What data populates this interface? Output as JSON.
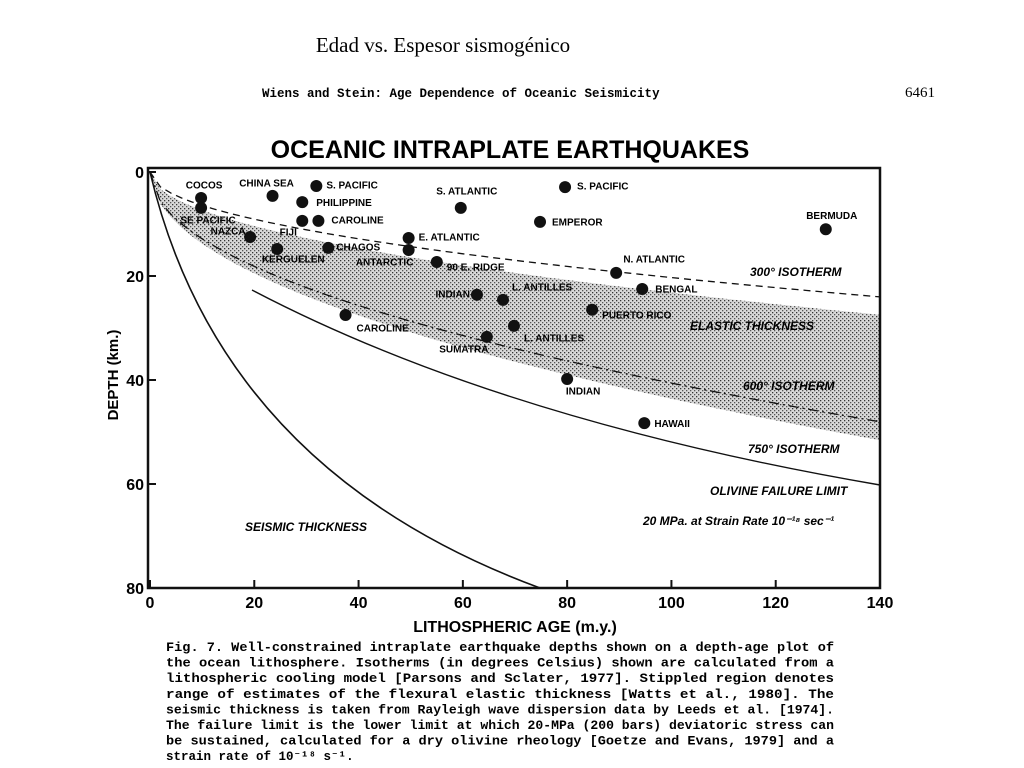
{
  "slide_title": "Edad vs. Espesor sismogénico",
  "header": "Wiens and Stein: Age Dependence of Oceanic Seismicity",
  "page_number": "6461",
  "chart_data": {
    "type": "scatter",
    "title": "OCEANIC INTRAPLATE EARTHQUAKES",
    "x_label": "LITHOSPHERIC AGE (m.y.)",
    "y_label": "DEPTH (km.)",
    "xlim": [
      0,
      140
    ],
    "ylim": [
      0,
      80
    ],
    "y_inverted": true,
    "xticks": [
      0,
      20,
      40,
      60,
      80,
      100,
      120,
      140
    ],
    "yticks": [
      0,
      20,
      40,
      60,
      80
    ],
    "color": "#111111",
    "x": [
      9.8,
      9.8,
      19.2,
      23.5,
      31.9,
      29.2,
      29.2,
      32.3,
      24.4,
      34.2,
      49.6,
      49.6,
      55,
      59.6,
      79.6,
      74.8,
      129.6,
      89.4,
      94.4,
      62.7,
      67.7,
      84.8,
      69.8,
      64.6,
      37.5,
      80,
      94.8
    ],
    "values": [
      5.0,
      6.9,
      12.5,
      4.6,
      2.7,
      5.8,
      9.4,
      9.4,
      14.8,
      14.6,
      12.7,
      15.0,
      17.3,
      6.9,
      2.9,
      9.6,
      11.0,
      19.4,
      22.5,
      23.6,
      24.6,
      26.5,
      29.6,
      31.7,
      27.5,
      39.8,
      48.3
    ],
    "point_labels": [
      "COCOS",
      "SE PACIFIC",
      "NAZCA",
      "CHINA SEA",
      "S. PACIFIC",
      "PHILIPPINE",
      "FIJI",
      "CAROLINE",
      "KERGUELEN",
      "CHAGOS",
      "E. ATLANTIC",
      "ANTARCTIC",
      "90 E. RIDGE",
      "S. ATLANTIC",
      "S. PACIFIC",
      "EMPEROR",
      "BERMUDA",
      "N. ATLANTIC",
      "BENGAL",
      "INDIAN",
      "L. ANTILLES",
      "PUERTO RICO",
      "L. ANTILLES",
      "SUMATRA",
      "CAROLINE",
      "INDIAN",
      "HAWAII"
    ],
    "annotations": [
      "300° ISOTHERM",
      "ELASTIC THICKNESS",
      "600° ISOTHERM",
      "750° ISOTHERM",
      "OLIVINE FAILURE LIMIT",
      "20 MPa. at Strain Rate 10⁻¹⁸ sec⁻¹",
      "SEISMIC THICKNESS"
    ]
  },
  "caption": [
    "Fig. 7.  Well-constrained intraplate earthquake depths shown on a depth-age plot of",
    "the ocean lithosphere.  Isotherms (in degrees Celsius) shown are calculated from a",
    "lithospheric cooling model [Parsons and Sclater, 1977].  Stippled region denotes",
    "range of estimates of the flexural elastic thickness [Watts et al., 1980].  The",
    "seismic thickness is taken from Rayleigh wave dispersion data by Leeds et al. [1974].",
    "The failure limit is the lower limit at which 20-MPa (200 bars) deviatoric stress can",
    "be sustained, calculated for a dry olivine rheology [Goetze and Evans, 1979] and a",
    "strain rate of 10⁻¹⁸ s⁻¹."
  ]
}
